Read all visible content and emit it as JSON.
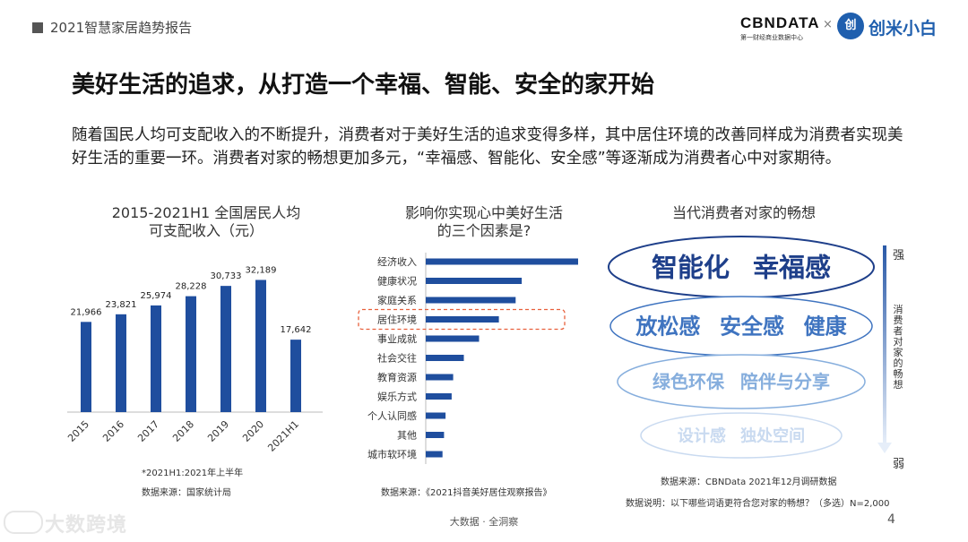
{
  "header": {
    "title": "2021智慧家居趋势报告"
  },
  "logos": {
    "cbn": "CBNDATA",
    "cbn_sub": "第一财经商业数据中心",
    "cross": "×",
    "cm_icon": "创",
    "cm": "创米小白"
  },
  "main_title": "美好生活的追求，从打造一个幸福、智能、安全的家开始",
  "intro": "随着国民人均可支配收入的不断提升，消费者对于美好生活的追求变得多样，其中居住环境的改善同样成为消费者实现美好生活的重要一环。消费者对家的畅想更加多元，“幸福感、智能化、安全感”等逐渐成为消费者心中对家期待。",
  "chart_data": [
    {
      "type": "bar",
      "title_line1": "2015-2021H1 全国居民人均",
      "title_line2": "可支配收入（元）",
      "categories": [
        "2015",
        "2016",
        "2017",
        "2018",
        "2019",
        "2020",
        "2021H1"
      ],
      "values": [
        21966,
        23821,
        25974,
        28228,
        30733,
        32189,
        17642
      ],
      "value_labels": [
        "21,966",
        "23,821",
        "25,974",
        "28,228",
        "30,733",
        "32,189",
        "17,642"
      ],
      "ylim": [
        0,
        36000
      ],
      "color": "#1f4e9e",
      "note": "*2021H1:2021年上半年",
      "source": "数据来源：国家统计局"
    },
    {
      "type": "bar",
      "orientation": "horizontal",
      "title_line1": "影响你实现心中美好生活",
      "title_line2": "的三个因素是?",
      "categories": [
        "经济收入",
        "健康状况",
        "家庭关系",
        "居住环境",
        "事业成就",
        "社会交往",
        "教育资源",
        "娱乐方式",
        "个人认同感",
        "其他",
        "城市软环境"
      ],
      "values": [
        100,
        63,
        59,
        48,
        35,
        25,
        18,
        17,
        13,
        12,
        11
      ],
      "highlight": "居住环境",
      "color": "#1f4e9e",
      "highlight_color": "#e8603c",
      "source": "数据来源：《2021抖音美好居住观察报告》"
    }
  ],
  "wordcloud": {
    "title": "当代消费者对家的畅想",
    "tiers": [
      {
        "words": [
          "智能化",
          "幸福感"
        ],
        "color": "#1e3f8a"
      },
      {
        "words": [
          "放松感",
          "安全感",
          "健康"
        ],
        "color": "#3f74c0"
      },
      {
        "words": [
          "绿色环保",
          "陪伴与分享"
        ],
        "color": "#86aedd"
      },
      {
        "words": [
          "设计感",
          "独处空间"
        ],
        "color": "#c9daf0"
      }
    ],
    "strong": "强",
    "weak": "弱",
    "axis_label": "消费者对家的畅想",
    "source": "数据来源：CBNData 2021年12月调研数据",
    "desc": "数据说明：以下哪些词语更符合您对家的畅想？（多选）N=2,000"
  },
  "footer": "大数据 · 全洞察",
  "page_number": "4",
  "watermark": "大数跨境"
}
